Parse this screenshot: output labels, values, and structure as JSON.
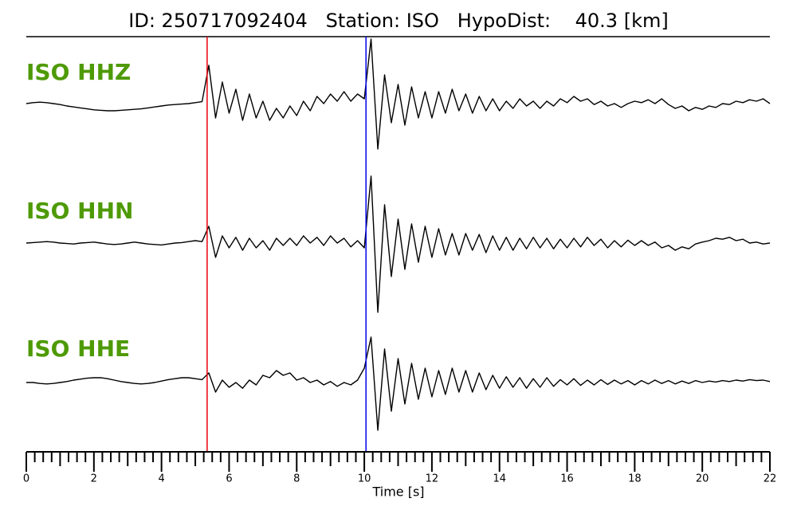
{
  "chart_data": {
    "type": "line",
    "title": "ID: 250717092404   Station: ISO   HypoDist:    40.3 [km]",
    "xlabel": "Time [s]",
    "xlim": [
      0,
      22
    ],
    "xticks": [
      0,
      2,
      4,
      6,
      8,
      10,
      12,
      14,
      16,
      18,
      20,
      22
    ],
    "xminorticks": [
      0.25,
      0.5,
      0.75,
      1,
      1.25,
      1.5,
      1.75,
      2.25,
      2.5,
      2.75,
      3,
      3.25,
      3.5,
      3.75,
      4.25,
      4.5,
      4.75,
      5,
      5.25,
      5.5,
      5.75,
      6.25,
      6.5,
      6.75,
      7,
      7.25,
      7.5,
      7.75,
      8.25,
      8.5,
      8.75,
      9,
      9.25,
      9.5,
      9.75,
      10.25,
      10.5,
      10.75,
      11,
      11.25,
      11.5,
      11.75,
      12.25,
      12.5,
      12.75,
      13,
      13.25,
      13.5,
      13.75,
      14.25,
      14.5,
      14.75,
      15,
      15.25,
      15.5,
      15.75,
      16.25,
      16.5,
      16.75,
      17,
      17.25,
      17.5,
      17.75,
      18.25,
      18.5,
      18.75,
      19,
      19.25,
      19.5,
      19.75,
      20.25,
      20.5,
      20.75,
      21,
      21.25,
      21.5,
      21.75
    ],
    "label_color": "#4e9a06",
    "picks": [
      {
        "x": 5.35,
        "color": "#e8000b"
      },
      {
        "x": 10.05,
        "color": "#0000ee"
      }
    ],
    "x": [
      0,
      0.2,
      0.4,
      0.6,
      0.8,
      1,
      1.2,
      1.4,
      1.6,
      1.8,
      2,
      2.2,
      2.4,
      2.6,
      2.8,
      3,
      3.2,
      3.4,
      3.6,
      3.8,
      4,
      4.2,
      4.4,
      4.6,
      4.8,
      5,
      5.2,
      5.4,
      5.6,
      5.8,
      6,
      6.2,
      6.4,
      6.6,
      6.8,
      7,
      7.2,
      7.4,
      7.6,
      7.8,
      8,
      8.2,
      8.4,
      8.6,
      8.8,
      9,
      9.2,
      9.4,
      9.6,
      9.8,
      10,
      10.2,
      10.4,
      10.6,
      10.8,
      11,
      11.2,
      11.4,
      11.6,
      11.8,
      12,
      12.2,
      12.4,
      12.6,
      12.8,
      13,
      13.2,
      13.4,
      13.6,
      13.8,
      14,
      14.2,
      14.4,
      14.6,
      14.8,
      15,
      15.2,
      15.4,
      15.6,
      15.8,
      16,
      16.2,
      16.4,
      16.6,
      16.8,
      17,
      17.2,
      17.4,
      17.6,
      17.8,
      18,
      18.2,
      18.4,
      18.6,
      18.8,
      19,
      19.2,
      19.4,
      19.6,
      19.8,
      20,
      20.2,
      20.4,
      20.6,
      20.8,
      21,
      21.2,
      21.4,
      21.6,
      21.8,
      22
    ],
    "series": [
      {
        "name": "ISO HHZ",
        "color": "#000000",
        "values": [
          0.0,
          0.02,
          0.03,
          0.02,
          0.0,
          -0.02,
          -0.05,
          -0.07,
          -0.09,
          -0.11,
          -0.13,
          -0.14,
          -0.15,
          -0.15,
          -0.14,
          -0.13,
          -0.12,
          -0.11,
          -0.09,
          -0.07,
          -0.05,
          -0.03,
          -0.02,
          -0.01,
          0.0,
          0.02,
          0.04,
          0.8,
          -0.3,
          0.45,
          -0.2,
          0.3,
          -0.35,
          0.2,
          -0.3,
          0.05,
          -0.35,
          -0.1,
          -0.3,
          -0.05,
          -0.25,
          0.05,
          -0.15,
          0.15,
          0.0,
          0.2,
          0.05,
          0.25,
          0.05,
          0.2,
          0.1,
          1.35,
          -0.95,
          0.6,
          -0.4,
          0.4,
          -0.45,
          0.35,
          -0.3,
          0.25,
          -0.3,
          0.25,
          -0.2,
          0.3,
          -0.15,
          0.2,
          -0.2,
          0.15,
          -0.15,
          0.1,
          -0.15,
          0.05,
          -0.1,
          0.1,
          -0.05,
          0.05,
          -0.1,
          0.05,
          -0.05,
          0.1,
          0.02,
          0.15,
          0.05,
          0.1,
          -0.02,
          0.05,
          -0.05,
          0.0,
          -0.08,
          0.0,
          0.05,
          0.02,
          0.08,
          0.0,
          0.1,
          -0.02,
          -0.1,
          -0.05,
          -0.15,
          -0.08,
          -0.12,
          -0.05,
          -0.08,
          0.0,
          -0.02,
          0.05,
          0.02,
          0.08,
          0.05,
          0.1,
          0.0
        ]
      },
      {
        "name": "ISO HHN",
        "color": "#000000",
        "values": [
          0.0,
          0.01,
          0.02,
          0.03,
          0.02,
          0.0,
          -0.01,
          -0.02,
          0.0,
          0.01,
          0.02,
          0.0,
          -0.02,
          -0.03,
          -0.02,
          0.0,
          0.02,
          0.0,
          -0.02,
          -0.03,
          -0.04,
          -0.02,
          0.0,
          0.01,
          0.03,
          0.05,
          0.03,
          0.35,
          -0.3,
          0.15,
          -0.1,
          0.12,
          -0.15,
          0.1,
          -0.1,
          0.05,
          -0.15,
          0.1,
          -0.05,
          0.1,
          -0.05,
          0.15,
          0.0,
          0.12,
          -0.05,
          0.15,
          0.0,
          0.1,
          -0.08,
          0.05,
          -0.1,
          1.4,
          -1.45,
          0.8,
          -0.7,
          0.5,
          -0.55,
          0.4,
          -0.4,
          0.35,
          -0.3,
          0.3,
          -0.25,
          0.2,
          -0.25,
          0.2,
          -0.15,
          0.18,
          -0.2,
          0.15,
          -0.15,
          0.12,
          -0.15,
          0.1,
          -0.12,
          0.12,
          -0.1,
          0.1,
          -0.12,
          0.08,
          -0.1,
          0.1,
          -0.08,
          0.12,
          -0.05,
          0.08,
          -0.1,
          0.05,
          -0.08,
          0.06,
          -0.05,
          0.05,
          -0.05,
          0.02,
          -0.1,
          -0.05,
          -0.15,
          -0.08,
          -0.12,
          -0.02,
          0.02,
          0.05,
          0.1,
          0.08,
          0.12,
          0.05,
          0.08,
          0.0,
          0.02,
          -0.02,
          0.0
        ]
      },
      {
        "name": "ISO HHE",
        "color": "#000000",
        "values": [
          0.0,
          0.0,
          -0.02,
          -0.03,
          -0.02,
          0.0,
          0.02,
          0.05,
          0.07,
          0.09,
          0.1,
          0.1,
          0.08,
          0.05,
          0.02,
          0.0,
          -0.02,
          -0.03,
          -0.02,
          0.0,
          0.03,
          0.06,
          0.08,
          0.1,
          0.1,
          0.08,
          0.06,
          0.2,
          -0.2,
          0.05,
          -0.1,
          0.0,
          -0.12,
          0.05,
          -0.05,
          0.15,
          0.1,
          0.25,
          0.15,
          0.2,
          0.05,
          0.1,
          0.0,
          0.05,
          -0.05,
          0.02,
          -0.08,
          0.0,
          -0.05,
          0.05,
          0.3,
          0.95,
          -1.0,
          0.7,
          -0.6,
          0.5,
          -0.45,
          0.4,
          -0.35,
          0.3,
          -0.3,
          0.25,
          -0.25,
          0.3,
          -0.2,
          0.25,
          -0.2,
          0.2,
          -0.15,
          0.15,
          -0.12,
          0.12,
          -0.1,
          0.1,
          -0.12,
          0.08,
          -0.1,
          0.1,
          -0.08,
          0.06,
          -0.05,
          0.08,
          -0.06,
          0.05,
          -0.05,
          0.06,
          -0.04,
          0.05,
          -0.03,
          0.04,
          -0.05,
          0.04,
          -0.03,
          0.05,
          -0.02,
          0.04,
          -0.03,
          0.03,
          -0.02,
          0.04,
          0.0,
          0.03,
          0.01,
          0.04,
          0.02,
          0.05,
          0.03,
          0.06,
          0.04,
          0.05,
          0.02
        ]
      }
    ]
  }
}
